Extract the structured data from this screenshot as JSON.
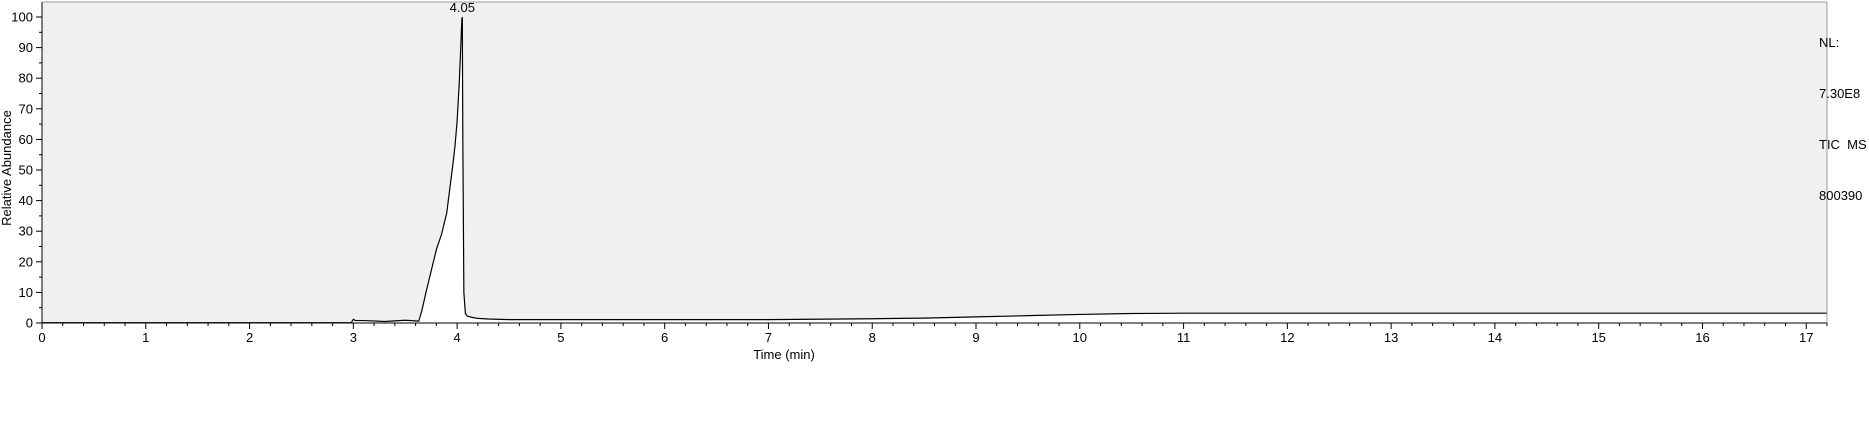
{
  "chart_data": {
    "type": "line",
    "xlabel": "Time (min)",
    "ylabel": "Relative Abundance",
    "xlim": [
      0,
      17.2
    ],
    "ylim": [
      0,
      100
    ],
    "x_ticks": [
      "0",
      "1",
      "2",
      "3",
      "4",
      "5",
      "6",
      "7",
      "8",
      "9",
      "10",
      "11",
      "12",
      "13",
      "14",
      "15",
      "16",
      "17"
    ],
    "y_ticks": [
      "0",
      "10",
      "20",
      "30",
      "40",
      "50",
      "60",
      "70",
      "80",
      "90",
      "100"
    ],
    "grid": false,
    "plot_background": "#f0f0f0",
    "line_color": "#000000",
    "peak_label": {
      "x": 4.05,
      "y": 100,
      "text": "4.05"
    },
    "annotation": {
      "nl_label": "NL:",
      "nl_value": "7.30E8",
      "trace": "TIC  MS",
      "file": "800390"
    },
    "series": [
      {
        "x": [
          0,
          2.98,
          3.0,
          3.02,
          3.1,
          3.3,
          3.5,
          3.63,
          3.66,
          3.7,
          3.75,
          3.8,
          3.85,
          3.9,
          3.93,
          3.96,
          3.98,
          4.0,
          4.02,
          4.035,
          4.045,
          4.05,
          4.055,
          4.065,
          4.08,
          4.1,
          4.15,
          4.2,
          4.3,
          4.5,
          5.0,
          6.0,
          7.0,
          7.7,
          8.0,
          8.5,
          9.0,
          9.5,
          10.0,
          10.5,
          11.0,
          12.0,
          13.0,
          14.0,
          15.0,
          16.0,
          17.2
        ],
        "y": [
          0.1,
          0.1,
          1.2,
          0.8,
          0.8,
          0.5,
          0.9,
          0.6,
          4,
          10,
          17,
          24,
          29,
          36,
          44,
          52,
          58,
          66,
          78,
          90,
          99,
          100,
          60,
          10,
          3,
          2.2,
          1.8,
          1.5,
          1.3,
          1.1,
          1.1,
          1.1,
          1.1,
          1.3,
          1.4,
          1.6,
          2.0,
          2.4,
          2.8,
          3.1,
          3.2,
          3.2,
          3.2,
          3.2,
          3.2,
          3.2,
          3.2
        ]
      }
    ]
  }
}
